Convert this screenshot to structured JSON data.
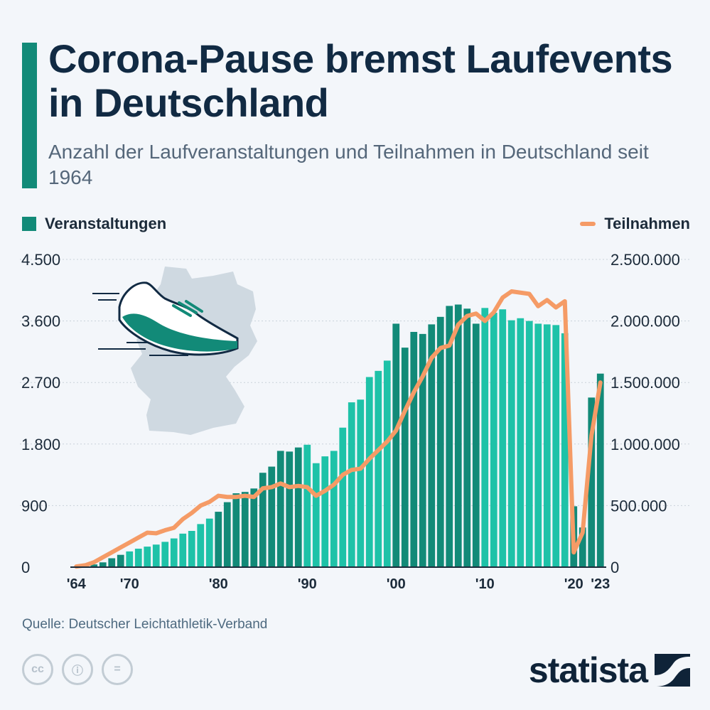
{
  "header": {
    "title": "Corona-Pause bremst Laufevents in Deutschland",
    "subtitle": "Anzahl der Laufveranstaltungen und Teilnahmen in Deutschland seit 1964"
  },
  "legend": {
    "bars": "Veranstaltungen",
    "line": "Teilnahmen"
  },
  "footer": {
    "source": "Quelle: Deutscher Leichtathletik-Verband",
    "brand": "statista"
  },
  "icons": {
    "license": [
      "cc-icon",
      "attribution-icon",
      "no-derivatives-icon"
    ],
    "license_glyphs": [
      "cc",
      "ⓘ",
      "="
    ],
    "brand_logo": "statista-logo-icon",
    "illustration": [
      "germany-map-icon",
      "running-shoe-icon"
    ]
  },
  "colors": {
    "accent": "#128a78",
    "bar_dark": "#128a78",
    "bar_light": "#1ec2a8",
    "line": "#f59b66",
    "title": "#112a43",
    "background": "#f3f6fa"
  },
  "chart_data": {
    "type": "bar+line",
    "x": [
      1964,
      1965,
      1966,
      1967,
      1968,
      1969,
      1970,
      1971,
      1972,
      1973,
      1974,
      1975,
      1976,
      1977,
      1978,
      1979,
      1980,
      1981,
      1982,
      1983,
      1984,
      1985,
      1986,
      1987,
      1988,
      1989,
      1990,
      1991,
      1992,
      1993,
      1994,
      1995,
      1996,
      1997,
      1998,
      1999,
      2000,
      2001,
      2002,
      2003,
      2004,
      2005,
      2006,
      2007,
      2008,
      2009,
      2010,
      2011,
      2012,
      2013,
      2014,
      2015,
      2016,
      2017,
      2018,
      2019,
      2020,
      2021,
      2022,
      2023
    ],
    "x_tick_labels": [
      {
        "x": 1964,
        "label": "'64"
      },
      {
        "x": 1970,
        "label": "'70"
      },
      {
        "x": 1980,
        "label": "'80"
      },
      {
        "x": 1990,
        "label": "'90"
      },
      {
        "x": 2000,
        "label": "'00"
      },
      {
        "x": 2010,
        "label": "'10"
      },
      {
        "x": 2020,
        "label": "'20"
      },
      {
        "x": 2023,
        "label": "'23"
      }
    ],
    "series": [
      {
        "name": "Veranstaltungen",
        "type": "bar",
        "axis": "left",
        "values": [
          10,
          20,
          40,
          70,
          130,
          180,
          230,
          270,
          300,
          330,
          370,
          420,
          490,
          530,
          630,
          710,
          810,
          950,
          1080,
          1100,
          1150,
          1380,
          1470,
          1700,
          1690,
          1750,
          1790,
          1520,
          1620,
          1700,
          2040,
          2410,
          2450,
          2780,
          2870,
          3020,
          3560,
          3210,
          3440,
          3410,
          3550,
          3660,
          3820,
          3840,
          3780,
          3560,
          3790,
          3720,
          3770,
          3610,
          3640,
          3600,
          3560,
          3550,
          3540,
          3420,
          890,
          580,
          2480,
          2830
        ]
      },
      {
        "name": "Teilnahmen",
        "type": "line",
        "axis": "right",
        "values": [
          5000,
          15000,
          40000,
          80000,
          120000,
          160000,
          200000,
          240000,
          280000,
          275000,
          300000,
          320000,
          390000,
          440000,
          500000,
          530000,
          580000,
          570000,
          570000,
          580000,
          570000,
          640000,
          650000,
          680000,
          650000,
          660000,
          650000,
          580000,
          620000,
          670000,
          750000,
          790000,
          800000,
          880000,
          950000,
          1020000,
          1110000,
          1270000,
          1420000,
          1550000,
          1700000,
          1780000,
          1800000,
          1970000,
          2040000,
          2060000,
          2000000,
          2070000,
          2190000,
          2240000,
          2230000,
          2220000,
          2120000,
          2170000,
          2110000,
          2160000,
          120000,
          280000,
          1070000,
          1500000
        ]
      }
    ],
    "y_left": {
      "min": 0,
      "max": 4500,
      "ticks": [
        0,
        900,
        1800,
        2700,
        3600,
        4500
      ],
      "tick_labels": [
        "0",
        "900",
        "1.800",
        "2.700",
        "3.600",
        "4.500"
      ]
    },
    "y_right": {
      "min": 0,
      "max": 2500000,
      "ticks": [
        0,
        500000,
        1000000,
        1500000,
        2000000,
        2500000
      ],
      "tick_labels": [
        "0",
        "500.000",
        "1.000.000",
        "1.500.000",
        "2.000.000",
        "2.500.000"
      ]
    },
    "grid": true,
    "legend_position": "top"
  }
}
